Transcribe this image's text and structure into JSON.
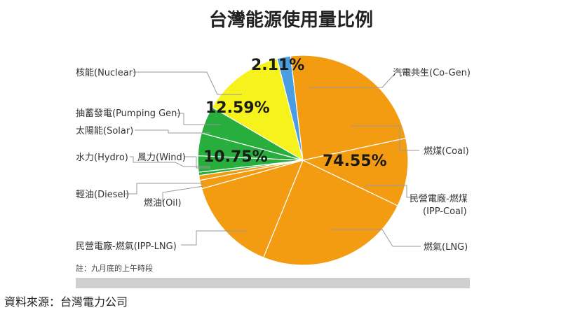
{
  "chart_data": {
    "type": "pie",
    "title": "台灣能源使用量比例",
    "colors": {
      "coal": "#f39c12",
      "ipp_coal": "#f39c12",
      "lng": "#f39c12",
      "ipp_lng": "#f39c12",
      "oil": "#f39c12",
      "diesel": "#f39c12",
      "wind": "#27ae3c",
      "hydro": "#27ae3c",
      "solar": "#27ae3c",
      "pumping": "#27ae3c",
      "nuclear": "#f5f21c",
      "cogen": "#4a9de0"
    },
    "slices": [
      {
        "key": "cogen",
        "label": "汽電共生(Co-Gen)",
        "value": 2.11
      },
      {
        "key": "coal",
        "label": "燃煤(Coal)",
        "value": 23.5
      },
      {
        "key": "ipp_coal",
        "label": "民營電廠-燃煤(IPP-Coal)",
        "value": 10.5
      },
      {
        "key": "lng",
        "label": "燃氣(LNG)",
        "value": 24.0
      },
      {
        "key": "ipp_lng",
        "label": "民營電廠-燃氣(IPP-LNG)",
        "value": 14.5
      },
      {
        "key": "oil",
        "label": "燃油(Oil)",
        "value": 1.3
      },
      {
        "key": "diesel",
        "label": "輕油(Diesel)",
        "value": 0.75
      },
      {
        "key": "wind",
        "label": "風力(Wind)",
        "value": 0.5
      },
      {
        "key": "hydro",
        "label": "水力(Hydro)",
        "value": 2.5
      },
      {
        "key": "solar",
        "label": "太陽能(Solar)",
        "value": 3.5
      },
      {
        "key": "pumping",
        "label": "抽蓄發電(Pumping Gen)",
        "value": 4.25
      },
      {
        "key": "nuclear",
        "label": "核能(Nuclear)",
        "value": 12.59
      }
    ],
    "group_labels": [
      {
        "name": "cogen",
        "text": "2.11%"
      },
      {
        "name": "nuclear",
        "text": "12.59%"
      },
      {
        "name": "renewable",
        "text": "10.75%"
      },
      {
        "name": "fossil",
        "text": "74.55%"
      }
    ]
  },
  "note": "註：九月底的上午時段",
  "source": "資料來源：台灣電力公司"
}
